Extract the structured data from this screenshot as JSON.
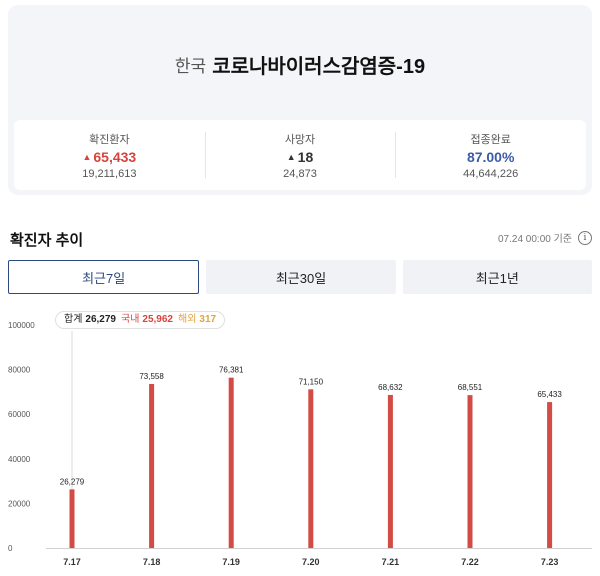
{
  "header": {
    "country": "한국",
    "disease": "코로나바이러스감염증-19"
  },
  "stats": [
    {
      "label": "확진환자",
      "delta": "65,433",
      "total": "19,211,613",
      "trend": "up"
    },
    {
      "label": "사망자",
      "delta": "18",
      "total": "24,873",
      "trend": "up"
    },
    {
      "label": "접종완료",
      "delta": "87.00%",
      "total": "44,644,226"
    }
  ],
  "section": {
    "title": "확진자 추이",
    "updated": "07.24 00:00 기준",
    "info_icon": "info-icon"
  },
  "tabs": [
    {
      "label": "최근7일",
      "active": true
    },
    {
      "label": "최근30일",
      "active": false
    },
    {
      "label": "최근1년",
      "active": false
    }
  ],
  "tooltip": {
    "total_label": "합계",
    "total_value": "26,279",
    "domestic_label": "국내",
    "domestic_value": "25,962",
    "overseas_label": "해외",
    "overseas_value": "317"
  },
  "colors": {
    "bar": "#d24b45",
    "red": "#d8433b",
    "blue": "#3b5ba8",
    "tab_active": "#2c4a80",
    "overseas": "#e0a340"
  },
  "chart_data": {
    "type": "bar",
    "categories": [
      "7.17",
      "7.18",
      "7.19",
      "7.20",
      "7.21",
      "7.22",
      "7.23"
    ],
    "values": [
      26279,
      73558,
      76381,
      71150,
      68632,
      68551,
      65433
    ],
    "data_labels": [
      "26,279",
      "73,558",
      "76,381",
      "71,150",
      "68,632",
      "68,551",
      "65,433"
    ],
    "yticks": [
      0,
      20000,
      40000,
      60000,
      80000,
      100000
    ],
    "ylim": [
      0,
      100000
    ],
    "highlighted_category": "7.17"
  }
}
